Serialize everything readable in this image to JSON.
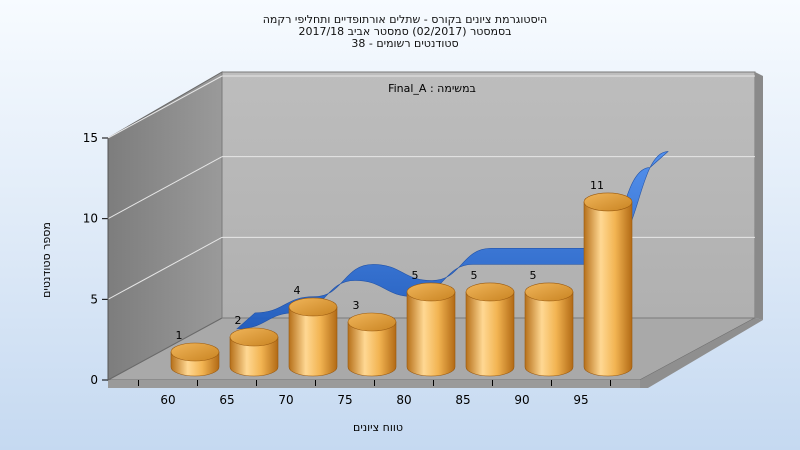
{
  "chart_data": {
    "type": "bar",
    "title_lines": [
      "היסטוגרמת ציונים בקורס - שתלים אורתופדיים ותחליפי רקמה",
      "בסמסטר  (02/2017)  סמסטר אביב 2017/18",
      "סטודנטים רשומים - 38"
    ],
    "annotation": "במשימה : Final_A",
    "xlabel": "טווח ציונים",
    "ylabel": "מספר סטודנטים",
    "categories": [
      "60",
      "65",
      "70",
      "75",
      "80",
      "85",
      "90",
      "95"
    ],
    "values": [
      1,
      2,
      4,
      3,
      5,
      5,
      5,
      11
    ],
    "data_labels": [
      "1",
      "2",
      "4",
      "3",
      "5",
      "5",
      "5",
      "11"
    ],
    "y_ticks": [
      "0",
      "5",
      "10",
      "15"
    ],
    "ylim": [
      0,
      15
    ],
    "grid": true,
    "bar_color": "#e8a33d",
    "trend_color": "#2f6fd6"
  }
}
